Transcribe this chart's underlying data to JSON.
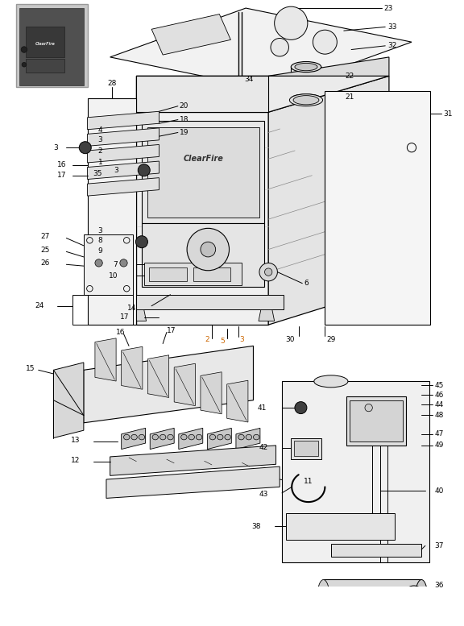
{
  "bg_color": "#ffffff",
  "line_color": "#000000",
  "label_color": "#000000",
  "orange_color": "#cc6600",
  "fig_width": 5.76,
  "fig_height": 7.77,
  "dpi": 100,
  "font_size": 6.5
}
